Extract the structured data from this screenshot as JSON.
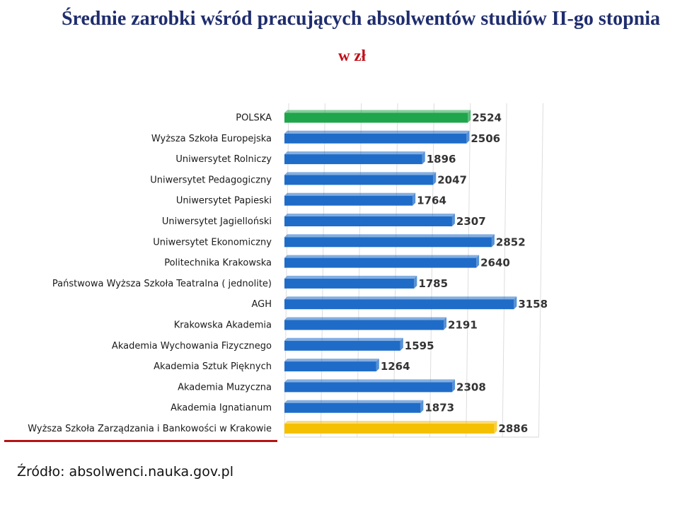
{
  "header": {
    "title": "Średnie zarobki wśród pracujących absolwentów studiów II-go stopnia",
    "unit": "w zł"
  },
  "source": "Źródło: absolwenci.nauka.gov.pl",
  "colors": {
    "poland": "#1fa54b",
    "default": "#1f6cc8",
    "highlight": "#f5c000"
  },
  "chart_data": {
    "type": "bar",
    "orientation": "horizontal",
    "title": "Średnie zarobki wśród pracujących absolwentów studiów II-go stopnia",
    "subtitle": "w zł",
    "xlim": [
      0,
      3500
    ],
    "grid": true,
    "categories": [
      "POLSKA",
      "Wyższa Szkoła Europejska",
      "Uniwersytet Rolniczy",
      "Uniwersytet Pedagogiczny",
      "Uniwersytet Papieski",
      "Uniwersytet Jagielloński",
      "Uniwersytet Ekonomiczny",
      "Politechnika Krakowska",
      "Państwowa Wyższa Szkoła Teatralna ( jednolite)",
      "AGH",
      "Krakowska Akademia",
      "Akademia Wychowania Fizycznego",
      "Akademia Sztuk Pięknych",
      "Akademia Muzyczna",
      "Akademia Ignatianum",
      "Wyższa Szkoła Zarządzania i Bankowości w Krakowie"
    ],
    "values": [
      2524,
      2506,
      1896,
      2047,
      1764,
      2307,
      2852,
      2640,
      1785,
      3158,
      2191,
      1595,
      1264,
      2308,
      1873,
      2886
    ],
    "bar_colors": [
      "poland",
      "default",
      "default",
      "default",
      "default",
      "default",
      "default",
      "default",
      "default",
      "default",
      "default",
      "default",
      "default",
      "default",
      "default",
      "highlight"
    ]
  }
}
